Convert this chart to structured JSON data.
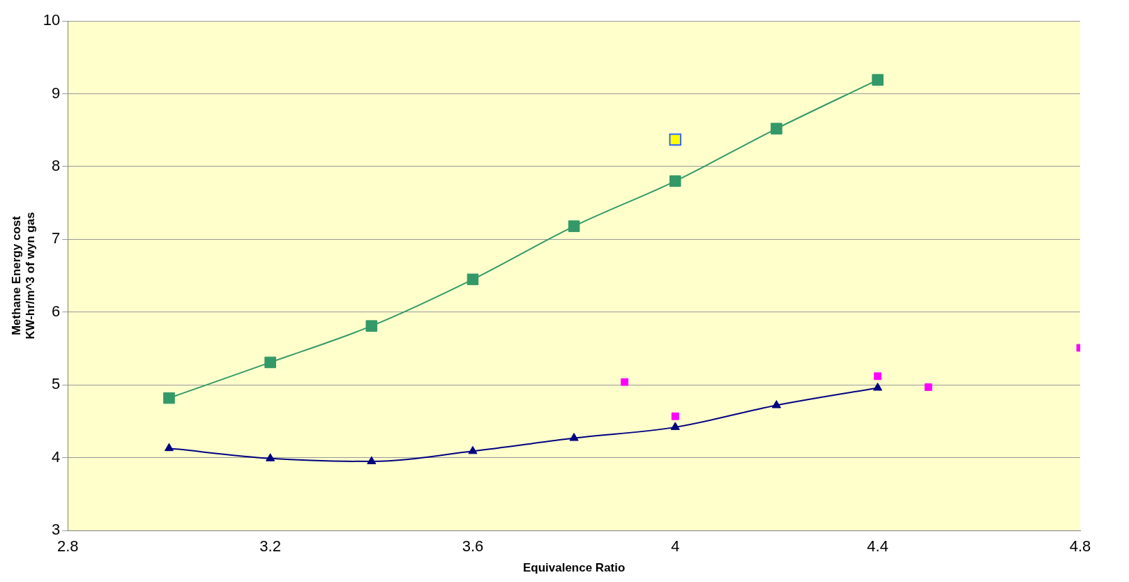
{
  "chart_data": {
    "type": "line",
    "xlabel": "Equivalence Ratio",
    "ylabel": "Methane Energy cost\nKW-hr/m^3 of wyn gas",
    "xlim": [
      2.8,
      4.8
    ],
    "xticks": [
      2.8,
      3.2,
      3.6,
      4,
      4.4,
      4.8
    ],
    "ylim": [
      3,
      10
    ],
    "yticks": [
      3,
      4,
      5,
      6,
      7,
      8,
      9,
      10
    ],
    "grid": "y",
    "legend": false,
    "line_style": "solid",
    "series": [
      {
        "type": "line",
        "marker": "square",
        "color": "#339966",
        "x": [
          3.0,
          3.2,
          3.4,
          3.6,
          3.8,
          4.0,
          4.2,
          4.4
        ],
        "values": [
          4.82,
          5.31,
          5.81,
          6.45,
          7.18,
          7.8,
          8.52,
          9.19
        ]
      },
      {
        "type": "line",
        "marker": "triangle",
        "color": "#000080",
        "x": [
          3.0,
          3.2,
          3.4,
          3.6,
          3.8,
          4.0,
          4.2,
          4.4
        ],
        "values": [
          4.13,
          3.99,
          3.95,
          4.09,
          4.27,
          4.42,
          4.72,
          4.96
        ]
      },
      {
        "type": "scatter",
        "marker": "square",
        "color": "#ff00ff",
        "x": [
          3.9,
          4.0,
          4.4,
          4.5,
          4.8
        ],
        "values": [
          5.04,
          4.57,
          5.12,
          4.97,
          5.51
        ]
      },
      {
        "type": "scatter",
        "marker": "square",
        "color": "#ffff00",
        "x": [
          4.0
        ],
        "values": [
          8.37
        ]
      }
    ]
  }
}
